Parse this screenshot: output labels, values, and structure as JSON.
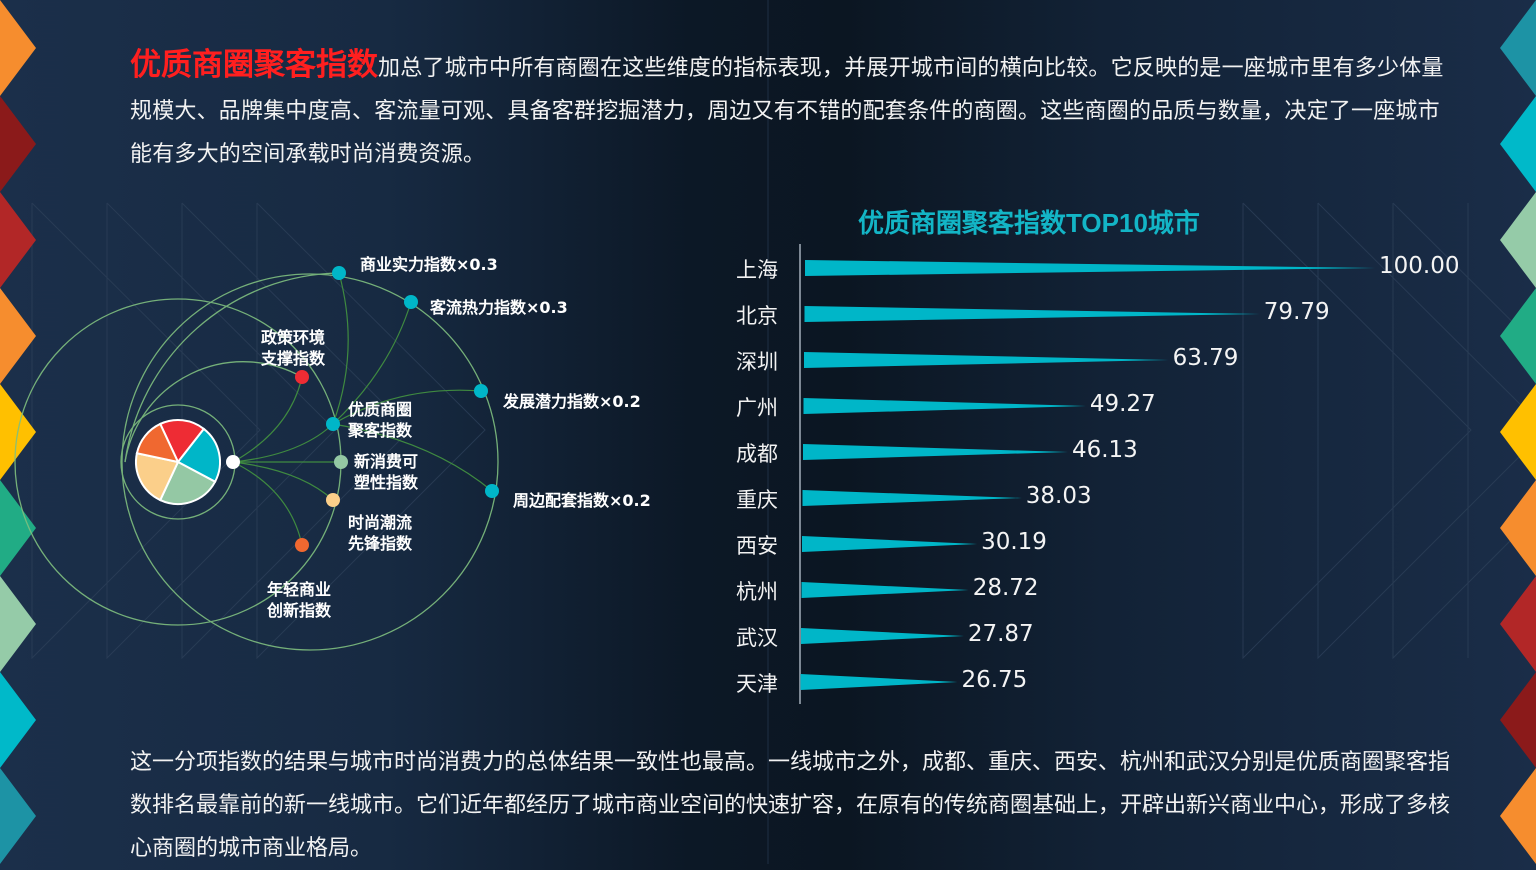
{
  "intro": {
    "highlight": "优质商圈聚客指数",
    "text": "加总了城市中所有商圈在这些维度的指标表现，并展开城市间的横向比较。它反映的是一座城市里有多少体量规模大、品牌集中度高、客流量可观、具备客群挖掘潜力，周边又有不错的配套条件的商圈。这些商圈的品质与数量，决定了一座城市能有多大的空间承载时尚消费资源。"
  },
  "diagram": {
    "outer_nodes": [
      {
        "label": "商业实力指数×0.3",
        "color": "#00b6c8"
      },
      {
        "label": "客流热力指数×0.3",
        "color": "#00b6c8"
      },
      {
        "label": "发展潜力指数×0.2",
        "color": "#00b6c8"
      },
      {
        "label": "周边配套指数×0.2",
        "color": "#00b6c8"
      }
    ],
    "inner_nodes": [
      {
        "line1": "政策环境",
        "line2": "支撑指数",
        "color": "#ee2c34"
      },
      {
        "line1": "优质商圈",
        "line2": "聚客指数",
        "color": "#00b6c8"
      },
      {
        "line1": "新消费可",
        "line2": "塑性指数",
        "color": "#94c8a4"
      },
      {
        "line1": "时尚潮流",
        "line2": "先锋指数",
        "color": "#fbcf8a"
      },
      {
        "line1": "年轻商业",
        "line2": "创新指数",
        "color": "#f06830"
      }
    ],
    "pie_colors": [
      "#ee2c34",
      "#00b6c8",
      "#94c8a4",
      "#fbcf8a",
      "#f06830"
    ]
  },
  "chart_data": {
    "type": "bar",
    "title": "优质商圈聚客指数TOP10城市",
    "orientation": "horizontal",
    "categories": [
      "上海",
      "北京",
      "深圳",
      "广州",
      "成都",
      "重庆",
      "西安",
      "杭州",
      "武汉",
      "天津"
    ],
    "values": [
      100.0,
      79.79,
      63.79,
      49.27,
      46.13,
      38.03,
      30.19,
      28.72,
      27.87,
      26.75
    ],
    "value_labels": [
      "100.00",
      "79.79",
      "63.79",
      "49.27",
      "46.13",
      "38.03",
      "30.19",
      "28.72",
      "27.87",
      "26.75"
    ],
    "bar_color": "#00b6c8",
    "bar_shape": "tapered wedge",
    "xlabel": "",
    "ylabel": "",
    "xlim": [
      0,
      100
    ],
    "grid": false,
    "legend": "none"
  },
  "outro": {
    "text": "这一分项指数的结果与城市时尚消费力的总体结果一致性也最高。一线城市之外，成都、重庆、西安、杭州和武汉分别是优质商圈聚客指数排名最靠前的新一线城市。它们近年都经历了城市商业空间的快速扩容，在原有的传统商圈基础上，开辟出新兴商业中心，形成了多核心商圈的城市商业格局。"
  },
  "decor": {
    "left_triangles": [
      "#f68d2e",
      "#8b1a1a",
      "#b22727",
      "#f68d2e",
      "#ffc000",
      "#21ac85",
      "#95cba8",
      "#00b9c9",
      "#1d93a5"
    ],
    "right_triangles": [
      "#1d93a5",
      "#00b9c9",
      "#95cba8",
      "#21ac85",
      "#ffc000",
      "#f68d2e",
      "#b22727",
      "#8b1a1a",
      "#f68d2e"
    ]
  }
}
